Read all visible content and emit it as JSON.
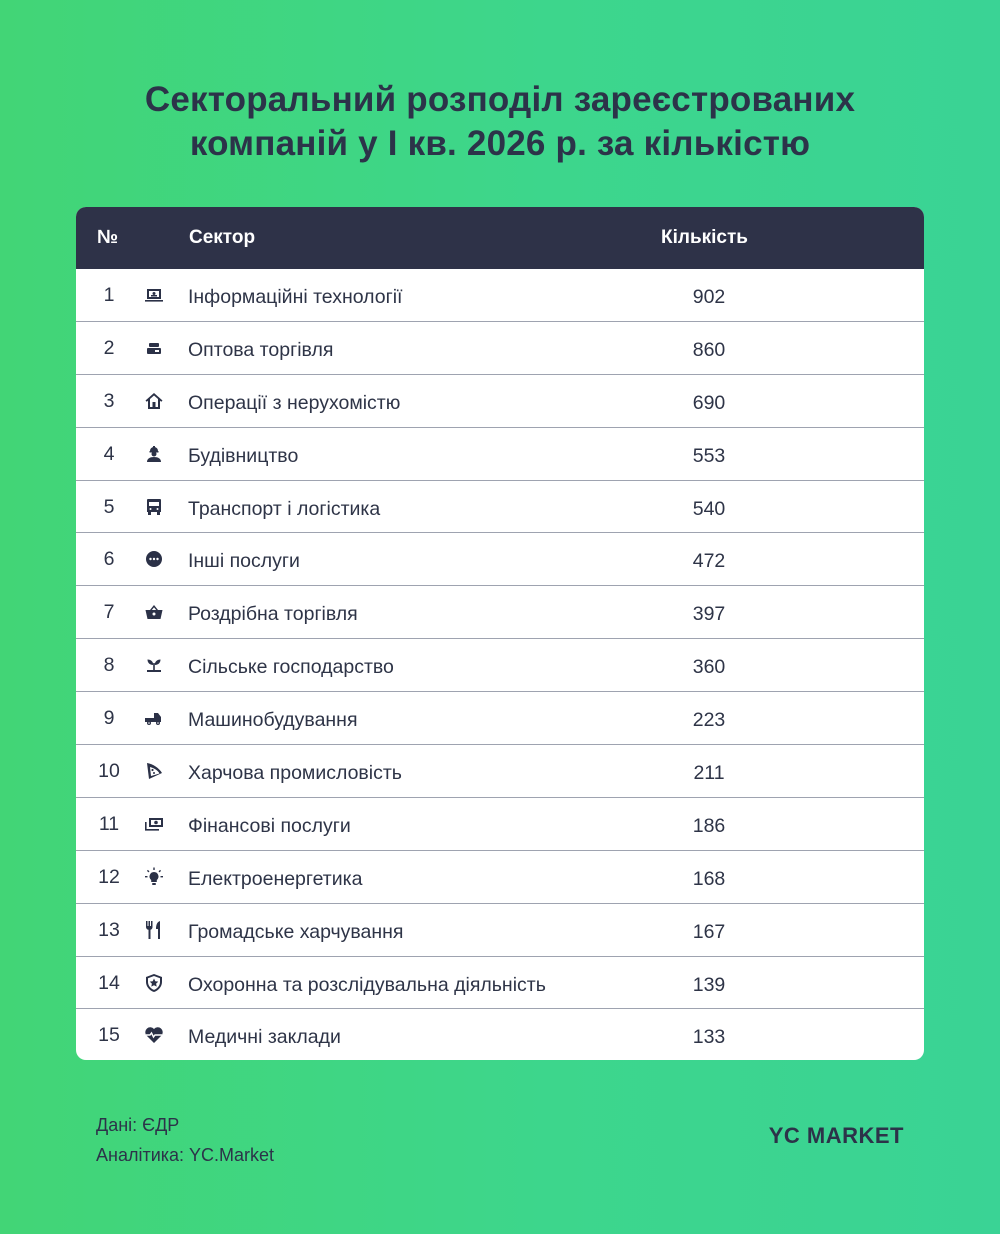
{
  "title": {
    "line1": "Секторальний розподіл зареєстрованих",
    "line2": "компаній у I кв. 2026 р. за кількістю"
  },
  "table": {
    "headers": {
      "no": "№",
      "sector": "Сектор",
      "count": "Кількість"
    },
    "rows": [
      {
        "no": "1",
        "icon": "laptop-icon",
        "sector": "Інформаційні технології",
        "count": "902"
      },
      {
        "no": "2",
        "icon": "boxes-icon",
        "sector": "Оптова торгівля",
        "count": "860"
      },
      {
        "no": "3",
        "icon": "house-icon",
        "sector": "Операції з нерухомістю",
        "count": "690"
      },
      {
        "no": "4",
        "icon": "worker-icon",
        "sector": "Будівництво",
        "count": "553"
      },
      {
        "no": "5",
        "icon": "bus-icon",
        "sector": "Транспорт і логістика",
        "count": "540"
      },
      {
        "no": "6",
        "icon": "ellipsis-circle-icon",
        "sector": "Інші послуги",
        "count": "472"
      },
      {
        "no": "7",
        "icon": "basket-icon",
        "sector": "Роздрібна торгівля",
        "count": "397"
      },
      {
        "no": "8",
        "icon": "sprout-icon",
        "sector": "Сільське господарство",
        "count": "360"
      },
      {
        "no": "9",
        "icon": "truck-icon",
        "sector": "Машинобудування",
        "count": "223"
      },
      {
        "no": "10",
        "icon": "pizza-slice-icon",
        "sector": "Харчова промисловість",
        "count": "211"
      },
      {
        "no": "11",
        "icon": "money-bill-icon",
        "sector": "Фінансові послуги",
        "count": "186"
      },
      {
        "no": "12",
        "icon": "lightbulb-icon",
        "sector": "Електроенергетика",
        "count": "168"
      },
      {
        "no": "13",
        "icon": "utensils-icon",
        "sector": "Громадське харчування",
        "count": "167"
      },
      {
        "no": "14",
        "icon": "shield-star-icon",
        "sector": "Охоронна та розслідувальна діяльність",
        "count": "139"
      },
      {
        "no": "15",
        "icon": "heart-pulse-icon",
        "sector": "Медичні заклади",
        "count": "133"
      }
    ]
  },
  "footer": {
    "data_source": "Дані: ЄДР",
    "analytics": "Аналітика: YC.Market",
    "brand": "YC MARKET"
  },
  "colors": {
    "background_left": "#42d576",
    "background_right": "#3ad395",
    "header_bg": "#2e3248",
    "text": "#2c3349"
  },
  "chart_data": {
    "type": "table",
    "title": "Секторальний розподіл зареєстрованих компаній у I кв. 2026 р. за кількістю",
    "columns": [
      "№",
      "Сектор",
      "Кількість"
    ],
    "categories": [
      "Інформаційні технології",
      "Оптова торгівля",
      "Операції з нерухомістю",
      "Будівництво",
      "Транспорт і логістика",
      "Інші послуги",
      "Роздрібна торгівля",
      "Сільське господарство",
      "Машинобудування",
      "Харчова промисловість",
      "Фінансові послуги",
      "Електроенергетика",
      "Громадське харчування",
      "Охоронна та розслідувальна діяльність",
      "Медичні заклади"
    ],
    "values": [
      902,
      860,
      690,
      553,
      540,
      472,
      397,
      360,
      223,
      211,
      186,
      168,
      167,
      139,
      133
    ],
    "source": "Дані: ЄДР",
    "analytics": "Аналітика: YC.Market"
  }
}
